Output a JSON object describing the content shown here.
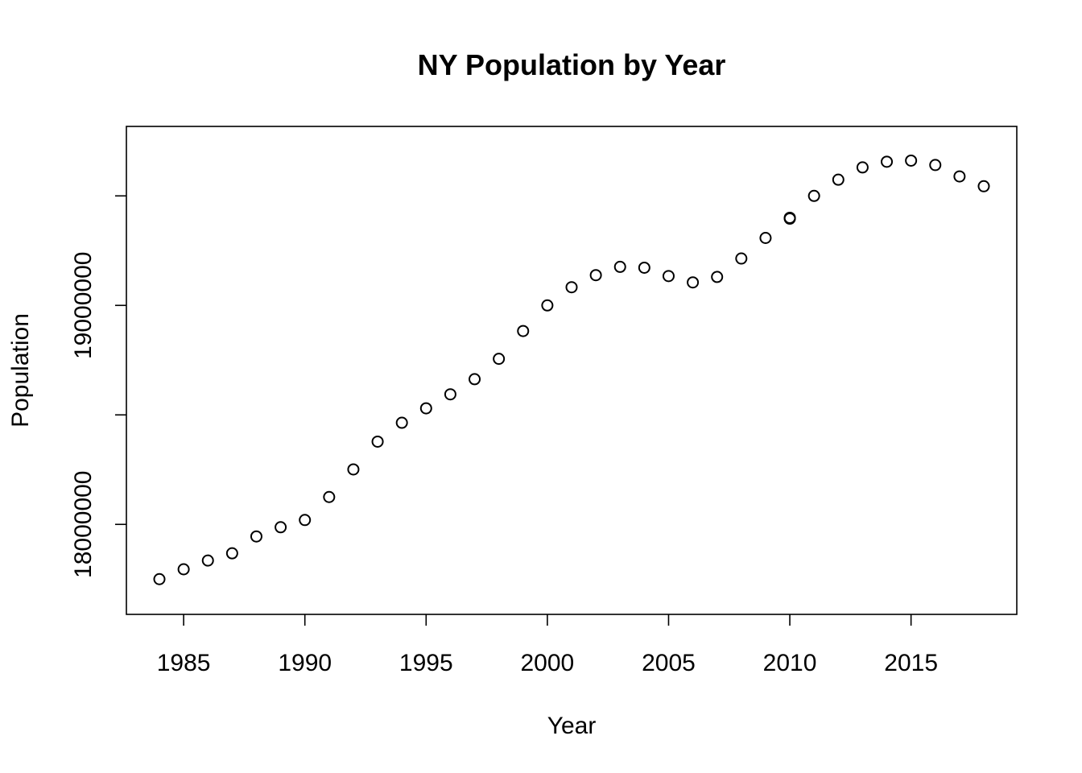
{
  "chart_data": {
    "type": "scatter",
    "title": "NY Population by Year",
    "xlabel": "Year",
    "ylabel": "Population",
    "xlim": [
      1984,
      2018
    ],
    "ylim": [
      17670000,
      19740000
    ],
    "xticks": [
      1985,
      1990,
      1995,
      2000,
      2005,
      2010,
      2015
    ],
    "xtick_labels": [
      "1985",
      "1990",
      "1995",
      "2000",
      "2005",
      "2010",
      "2015"
    ],
    "yticks": [
      18000000,
      18500000,
      19000000,
      19500000
    ],
    "ytick_labels": [
      "18000000",
      "",
      "19000000",
      ""
    ],
    "grid": false,
    "legend": "none",
    "series": [
      {
        "x": [
          1984,
          1985,
          1986,
          1987,
          1988,
          1989,
          1990,
          1991,
          1992,
          1993,
          1994,
          1995,
          1996,
          1997,
          1998,
          1999,
          2000,
          2001,
          2002,
          2003,
          2004,
          2005,
          2006,
          2007,
          2008,
          2009,
          2010,
          2010,
          2011,
          2012,
          2013,
          2014,
          2015,
          2016,
          2017,
          2018
        ],
        "y": [
          17750000,
          17795000,
          17835000,
          17868000,
          17945000,
          17987000,
          18020000,
          18125000,
          18251000,
          18378000,
          18464000,
          18530000,
          18594000,
          18663000,
          18756000,
          18883000,
          19000000,
          19083000,
          19138000,
          19176000,
          19172000,
          19134000,
          19105000,
          19130000,
          19214000,
          19308000,
          19396000,
          19400000,
          19500000,
          19574000,
          19630000,
          19656000,
          19661000,
          19641000,
          19589000,
          19544000
        ]
      }
    ]
  }
}
